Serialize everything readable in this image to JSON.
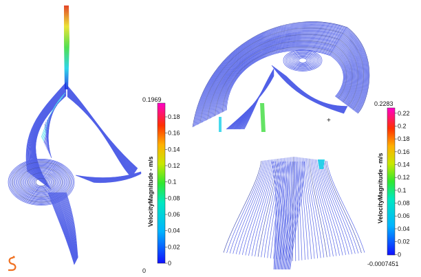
{
  "legend_left": {
    "top_value": "0.1969",
    "bottom_value": "0",
    "title": "VelocityMagnitude - m/s",
    "ticks": [
      "0.18",
      "0.16",
      "0.14",
      "0.12",
      "0.1",
      "0.08",
      "0.06",
      "0.04",
      "0.02",
      "0"
    ]
  },
  "legend_right": {
    "top_value": "0.2283",
    "bottom_value": "-0.0007451",
    "title": "VelocityMagnitude - m/s",
    "ticks": [
      "0.22",
      "0.2",
      "0.18",
      "0.16",
      "0.14",
      "0.12",
      "0.1",
      "0.08",
      "0.06",
      "0.04",
      "0.02",
      "0"
    ]
  },
  "colors": {
    "streamline_primary": "#1a2ee0",
    "streamline_dark": "#0a1a9c",
    "accent_cyan": "#18d0e8",
    "accent_green": "#3ddc3d",
    "accent_yellow": "#e8e020",
    "accent_red": "#e03010",
    "logo": "#f07020"
  },
  "icons": {
    "logo": "s-curve-logo-icon"
  }
}
